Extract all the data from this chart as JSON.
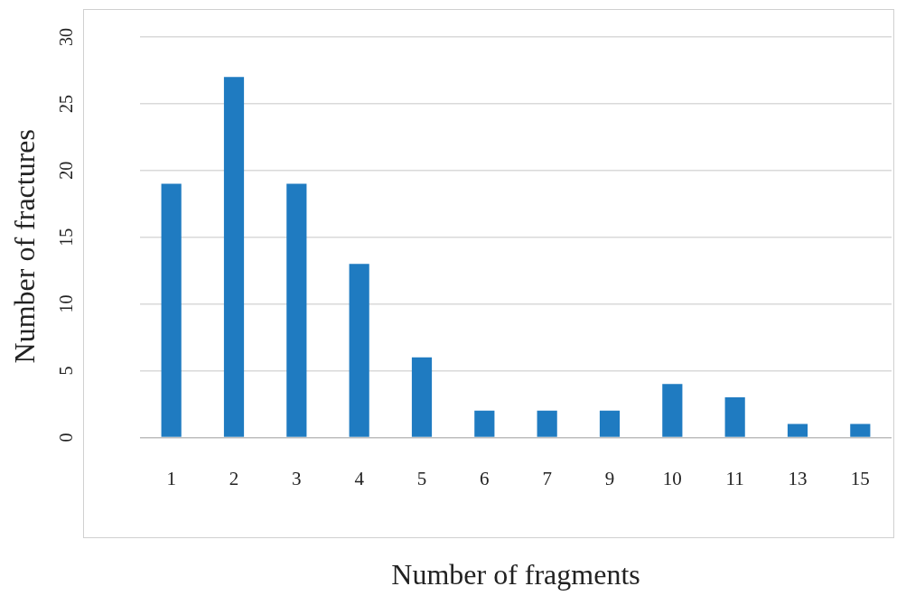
{
  "chart_data": {
    "type": "bar",
    "xlabel": "Number of fragments",
    "ylabel": "Number of fractures",
    "categories": [
      "1",
      "2",
      "3",
      "4",
      "5",
      "6",
      "7",
      "9",
      "10",
      "11",
      "13",
      "15"
    ],
    "values": [
      19,
      27,
      19,
      13,
      6,
      2,
      2,
      2,
      4,
      3,
      1,
      1
    ],
    "color": "#1f7bc1",
    "ylim": [
      0,
      30
    ],
    "yticks": [
      0,
      5,
      10,
      15,
      20,
      25,
      30
    ],
    "grid": "y"
  }
}
